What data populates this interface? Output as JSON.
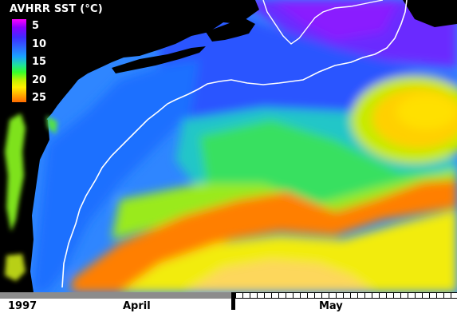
{
  "legend": {
    "title": "AVHRR SST (°C)",
    "ticks": [
      "5",
      "10",
      "15",
      "20",
      "25"
    ]
  },
  "timeline": {
    "year": "1997",
    "month1": "April",
    "month2": "May",
    "progress_fraction": 0.51
  },
  "colors": {
    "land": "#000000",
    "gulf_stream": "#ff8a00",
    "warm_water": "#f3f000",
    "shelf_water": "#2a8cff",
    "cold_water": "#7a1fff",
    "shelf_break_line": "#ffffff"
  }
}
